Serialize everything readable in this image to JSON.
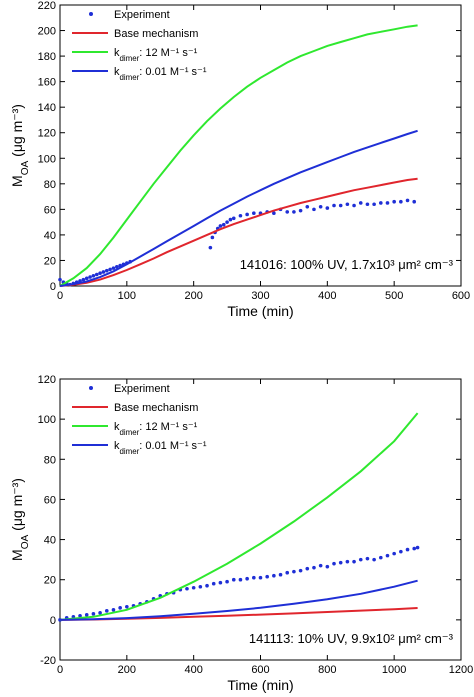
{
  "chart_data": [
    {
      "type": "line",
      "annotation": "141016: 100% UV, 1.7x10³ μm² cm⁻³",
      "xlabel": "Time (min)",
      "ylabel": "M_OA (μg m⁻³)",
      "xlim": [
        0,
        600
      ],
      "ylim": [
        0,
        220
      ],
      "xticks": [
        0,
        100,
        200,
        300,
        400,
        500,
        600
      ],
      "yticks": [
        0,
        20,
        40,
        60,
        80,
        100,
        120,
        140,
        160,
        180,
        200,
        220
      ],
      "legend_position": "top-left",
      "series": [
        {
          "name": "Experiment",
          "style": "points",
          "color": "#1f2fd6",
          "x": [
            0,
            5,
            10,
            15,
            20,
            25,
            30,
            35,
            40,
            45,
            50,
            55,
            60,
            65,
            70,
            75,
            80,
            85,
            90,
            95,
            100,
            105,
            225,
            228,
            232,
            236,
            240,
            245,
            250,
            255,
            260,
            270,
            280,
            290,
            300,
            310,
            320,
            330,
            340,
            350,
            360,
            370,
            380,
            390,
            400,
            410,
            420,
            430,
            440,
            450,
            460,
            470,
            480,
            490,
            500,
            510,
            520,
            530
          ],
          "y": [
            5,
            3,
            2,
            1,
            2,
            3,
            4,
            5,
            6,
            7,
            8,
            9,
            10,
            11,
            12,
            13,
            14,
            15,
            16,
            17,
            18,
            19,
            30,
            38,
            42,
            45,
            47,
            48,
            50,
            52,
            53,
            55,
            56,
            57,
            57,
            58,
            57,
            60,
            58,
            58,
            59,
            62,
            60,
            62,
            61,
            63,
            63,
            64,
            63,
            65,
            64,
            64,
            65,
            65,
            66,
            66,
            67,
            66
          ]
        },
        {
          "name": "Base mechanism",
          "style": "line",
          "color": "#e0262d",
          "x": [
            0,
            20,
            40,
            60,
            80,
            100,
            120,
            140,
            160,
            180,
            200,
            220,
            240,
            260,
            280,
            300,
            320,
            340,
            360,
            380,
            400,
            420,
            440,
            460,
            480,
            500,
            520,
            535
          ],
          "y": [
            0,
            1,
            2.5,
            5,
            8.5,
            12.5,
            17,
            21.5,
            26.5,
            31,
            35.5,
            40,
            44.5,
            48.5,
            52,
            55.5,
            59,
            62,
            65,
            67.5,
            70,
            72.5,
            75,
            77,
            79,
            81,
            83,
            84
          ]
        },
        {
          "name": "k_dimer: 12 M⁻¹ s⁻¹",
          "style": "line",
          "color": "#2fe82f",
          "x": [
            0,
            20,
            40,
            60,
            80,
            100,
            120,
            140,
            160,
            180,
            200,
            220,
            240,
            260,
            280,
            300,
            320,
            340,
            360,
            380,
            400,
            420,
            440,
            460,
            480,
            500,
            520,
            535
          ],
          "y": [
            0,
            6,
            14,
            25,
            38,
            52,
            66,
            80,
            93,
            106,
            118,
            129,
            139,
            148,
            156,
            163,
            169,
            175,
            180,
            184,
            188,
            191,
            194,
            197,
            199,
            201,
            203,
            204
          ]
        },
        {
          "name": "k_dimer: 0.01 M⁻¹ s⁻¹",
          "style": "line",
          "color": "#1f2fd6",
          "x": [
            0,
            20,
            40,
            60,
            80,
            100,
            120,
            140,
            160,
            180,
            200,
            220,
            240,
            260,
            280,
            300,
            320,
            340,
            360,
            380,
            400,
            420,
            440,
            460,
            480,
            500,
            520,
            535
          ],
          "y": [
            0,
            1.5,
            3.5,
            7,
            11.5,
            17,
            23,
            29,
            35,
            41,
            47,
            53,
            59,
            64.5,
            70,
            75,
            80,
            84.5,
            89,
            93,
            97,
            101,
            105,
            108.5,
            112,
            115.5,
            119,
            121.5
          ]
        }
      ]
    },
    {
      "type": "line",
      "annotation": "141113: 10% UV, 9.9x10² μm² cm⁻³",
      "xlabel": "Time (min)",
      "ylabel": "M_OA (μg m⁻³)",
      "xlim": [
        0,
        1200
      ],
      "ylim": [
        -20,
        120
      ],
      "xticks": [
        0,
        200,
        400,
        600,
        800,
        1000,
        1200
      ],
      "yticks": [
        -20,
        0,
        20,
        40,
        60,
        80,
        100,
        120
      ],
      "legend_position": "top-left",
      "series": [
        {
          "name": "Experiment",
          "style": "points",
          "color": "#1f2fd6",
          "x": [
            0,
            20,
            40,
            60,
            80,
            100,
            120,
            140,
            160,
            180,
            200,
            220,
            240,
            260,
            280,
            300,
            320,
            340,
            360,
            380,
            400,
            420,
            440,
            460,
            480,
            500,
            520,
            540,
            560,
            580,
            600,
            620,
            640,
            660,
            680,
            700,
            720,
            740,
            760,
            780,
            800,
            820,
            840,
            860,
            880,
            900,
            920,
            940,
            960,
            980,
            1000,
            1020,
            1040,
            1060,
            1070
          ],
          "y": [
            0,
            1,
            1.5,
            2,
            2.5,
            3,
            3.5,
            4.5,
            5,
            6,
            6.5,
            7,
            8,
            9,
            10.5,
            12,
            13,
            13.5,
            15,
            15.5,
            16,
            16.5,
            17,
            18,
            18.5,
            19,
            20,
            20,
            20.5,
            21,
            21,
            21.5,
            22,
            22.5,
            23.5,
            24,
            24.5,
            25.5,
            26,
            27,
            26.5,
            28,
            28.5,
            29,
            29,
            30,
            30.5,
            30,
            31,
            32,
            33,
            34,
            35,
            35.5,
            36
          ]
        },
        {
          "name": "Base mechanism",
          "style": "line",
          "color": "#e0262d",
          "x": [
            0,
            100,
            200,
            300,
            400,
            500,
            600,
            700,
            800,
            900,
            1000,
            1070
          ],
          "y": [
            0,
            0.2,
            0.6,
            1,
            1.5,
            2,
            2.6,
            3.2,
            3.9,
            4.6,
            5.3,
            5.9
          ]
        },
        {
          "name": "k_dimer: 12 M⁻¹ s⁻¹",
          "style": "line",
          "color": "#2fe82f",
          "x": [
            0,
            100,
            200,
            300,
            400,
            500,
            600,
            700,
            800,
            900,
            1000,
            1070
          ],
          "y": [
            0,
            1.5,
            5,
            11,
            19,
            28,
            38,
            49,
            61,
            74,
            89,
            103
          ]
        },
        {
          "name": "k_dimer: 0.01 M⁻¹ s⁻¹",
          "style": "line",
          "color": "#1f2fd6",
          "x": [
            0,
            100,
            200,
            300,
            400,
            500,
            600,
            700,
            800,
            900,
            1000,
            1070
          ],
          "y": [
            0,
            0.3,
            0.9,
            1.8,
            3,
            4.4,
            6,
            8,
            10.3,
            13,
            16.5,
            19.5
          ]
        }
      ]
    }
  ]
}
